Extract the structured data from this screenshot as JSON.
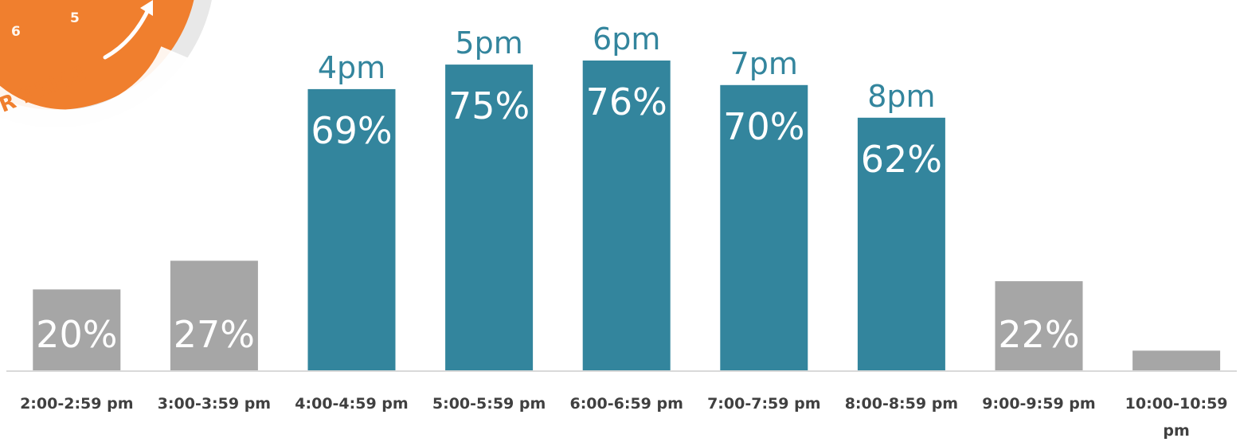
{
  "chart_data": {
    "type": "bar",
    "categories": [
      "2:00-2:59 pm",
      "3:00-3:59 pm",
      "4:00-4:59 pm",
      "5:00-5:59 pm",
      "6:00-6:59 pm",
      "7:00-7:59 pm",
      "8:00-8:59 pm",
      "9:00-9:59 pm",
      "10:00-10:59 pm"
    ],
    "values": [
      20,
      27,
      69,
      75,
      76,
      70,
      62,
      22,
      5
    ],
    "value_labels": [
      "20%",
      "27%",
      "69%",
      "75%",
      "76%",
      "70%",
      "62%",
      "22%",
      ""
    ],
    "hour_labels": [
      "",
      "",
      "4pm",
      "5pm",
      "6pm",
      "7pm",
      "8pm",
      "",
      ""
    ],
    "highlight": [
      false,
      false,
      true,
      true,
      true,
      true,
      true,
      false,
      false
    ],
    "ylim": [
      0,
      76
    ],
    "grid": false,
    "title": "",
    "xlabel": "",
    "ylabel": ""
  },
  "badge": {
    "digits": [
      "6",
      "5"
    ],
    "text": "R PRICE"
  },
  "colors": {
    "highlight": "#33859d",
    "normal": "#a6a6a6",
    "hour_label": "#33859d",
    "badge_orange": "#f07f2e",
    "badge_ring": "#e8e8e8",
    "axis": "#d9d9d9",
    "tick_text": "#404040"
  }
}
